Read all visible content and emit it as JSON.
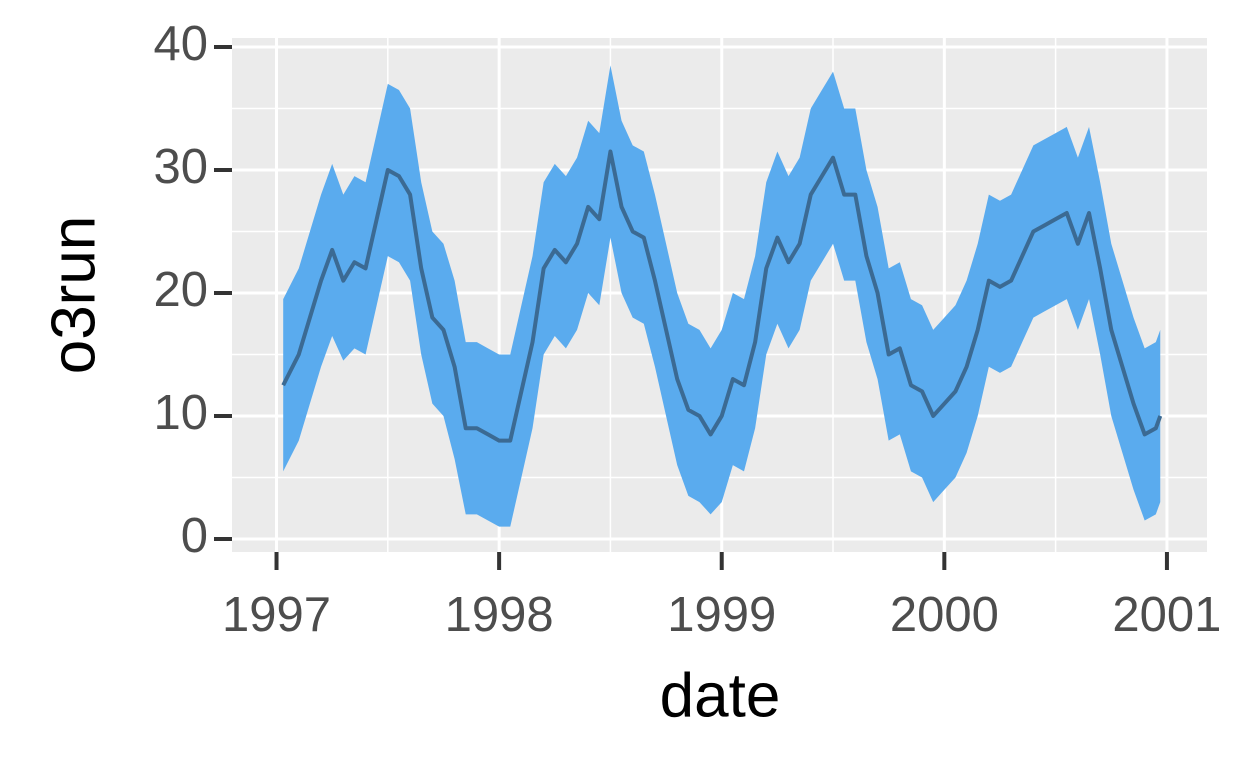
{
  "chart_data": {
    "type": "line",
    "x_label": "date",
    "y_label": "o3run",
    "x": [
      1997.03,
      1997.1,
      1997.15,
      1997.2,
      1997.25,
      1997.3,
      1997.35,
      1997.4,
      1997.45,
      1997.5,
      1997.55,
      1997.6,
      1997.65,
      1997.7,
      1997.75,
      1997.8,
      1997.85,
      1997.9,
      1997.95,
      1998.0,
      1998.05,
      1998.1,
      1998.15,
      1998.2,
      1998.25,
      1998.3,
      1998.35,
      1998.4,
      1998.45,
      1998.5,
      1998.55,
      1998.6,
      1998.65,
      1998.7,
      1998.75,
      1998.8,
      1998.85,
      1998.9,
      1998.95,
      1999.0,
      1999.05,
      1999.1,
      1999.15,
      1999.2,
      1999.25,
      1999.3,
      1999.35,
      1999.4,
      1999.45,
      1999.5,
      1999.55,
      1999.6,
      1999.65,
      1999.7,
      1999.75,
      1999.8,
      1999.85,
      1999.9,
      1999.95,
      2000.0,
      2000.05,
      2000.1,
      2000.15,
      2000.2,
      2000.25,
      2000.3,
      2000.35,
      2000.4,
      2000.45,
      2000.5,
      2000.55,
      2000.6,
      2000.65,
      2000.7,
      2000.75,
      2000.8,
      2000.85,
      2000.9,
      2000.95,
      2000.97
    ],
    "values": [
      12.5,
      15,
      18,
      21,
      23.5,
      21,
      22.5,
      22,
      26,
      30,
      29.5,
      28,
      22,
      18,
      17,
      14,
      9,
      9,
      8.5,
      8,
      8,
      12,
      16,
      22,
      23.5,
      22.5,
      24,
      27,
      26,
      31.5,
      27,
      25,
      24.5,
      21,
      17,
      13,
      10.5,
      10,
      8.5,
      10,
      13,
      12.5,
      16,
      22,
      24.5,
      22.5,
      24,
      28,
      29.5,
      31,
      28,
      28,
      23,
      20,
      15,
      15.5,
      12.5,
      12,
      10,
      11,
      12,
      14,
      17,
      21,
      20.5,
      21,
      23,
      25,
      25.5,
      26,
      26.5,
      24,
      26.5,
      22,
      17,
      14,
      11,
      8.5,
      9,
      10
    ],
    "lower": [
      5.5,
      8,
      11,
      14,
      16.5,
      14.5,
      15.5,
      15,
      19,
      23,
      22.5,
      21,
      15,
      11,
      10,
      6.5,
      2,
      2,
      1.5,
      1,
      1,
      5,
      9,
      15,
      16.5,
      15.5,
      17,
      20,
      19,
      24.5,
      20,
      18,
      17.5,
      14,
      10,
      6,
      3.5,
      3,
      2,
      3,
      6,
      5.5,
      9,
      15,
      17.5,
      15.5,
      17,
      21,
      22.5,
      24,
      21,
      21,
      16,
      13,
      8,
      8.5,
      5.5,
      5,
      3,
      4,
      5,
      7,
      10,
      14,
      13.5,
      14,
      16,
      18,
      18.5,
      19,
      19.5,
      17,
      19.5,
      15,
      10,
      7,
      4,
      1.5,
      2,
      3
    ],
    "upper": [
      19.5,
      22,
      25,
      28,
      30.5,
      28,
      29.5,
      29,
      33,
      37,
      36.5,
      35,
      29,
      25,
      24,
      21,
      16,
      16,
      15.5,
      15,
      15,
      19,
      23,
      29,
      30.5,
      29.5,
      31,
      34,
      33,
      38.5,
      34,
      32,
      31.5,
      28,
      24,
      20,
      17.5,
      17,
      15.5,
      17,
      20,
      19.5,
      23,
      29,
      31.5,
      29.5,
      31,
      35,
      36.5,
      38,
      35,
      35,
      30,
      27,
      22,
      22.5,
      19.5,
      19,
      17,
      18,
      19,
      21,
      24,
      28,
      27.5,
      28,
      30,
      32,
      32.5,
      33,
      33.5,
      31,
      33.5,
      29,
      24,
      21,
      18,
      15.5,
      16,
      17
    ],
    "color": "#3b6a93",
    "ribbon_color": "#5aabee",
    "xlim": [
      1996.8,
      2001.18
    ],
    "xticks": [
      1997,
      1998,
      1999,
      2000,
      2001
    ],
    "minor_xticks": [
      1997.5,
      1998.5,
      1999.5,
      2000.5
    ],
    "ylim": [
      -1.06,
      40.73
    ],
    "yticks": [
      0,
      10,
      20,
      30,
      40
    ],
    "minor_yticks": [
      5,
      15,
      25,
      35
    ],
    "grid": true
  }
}
